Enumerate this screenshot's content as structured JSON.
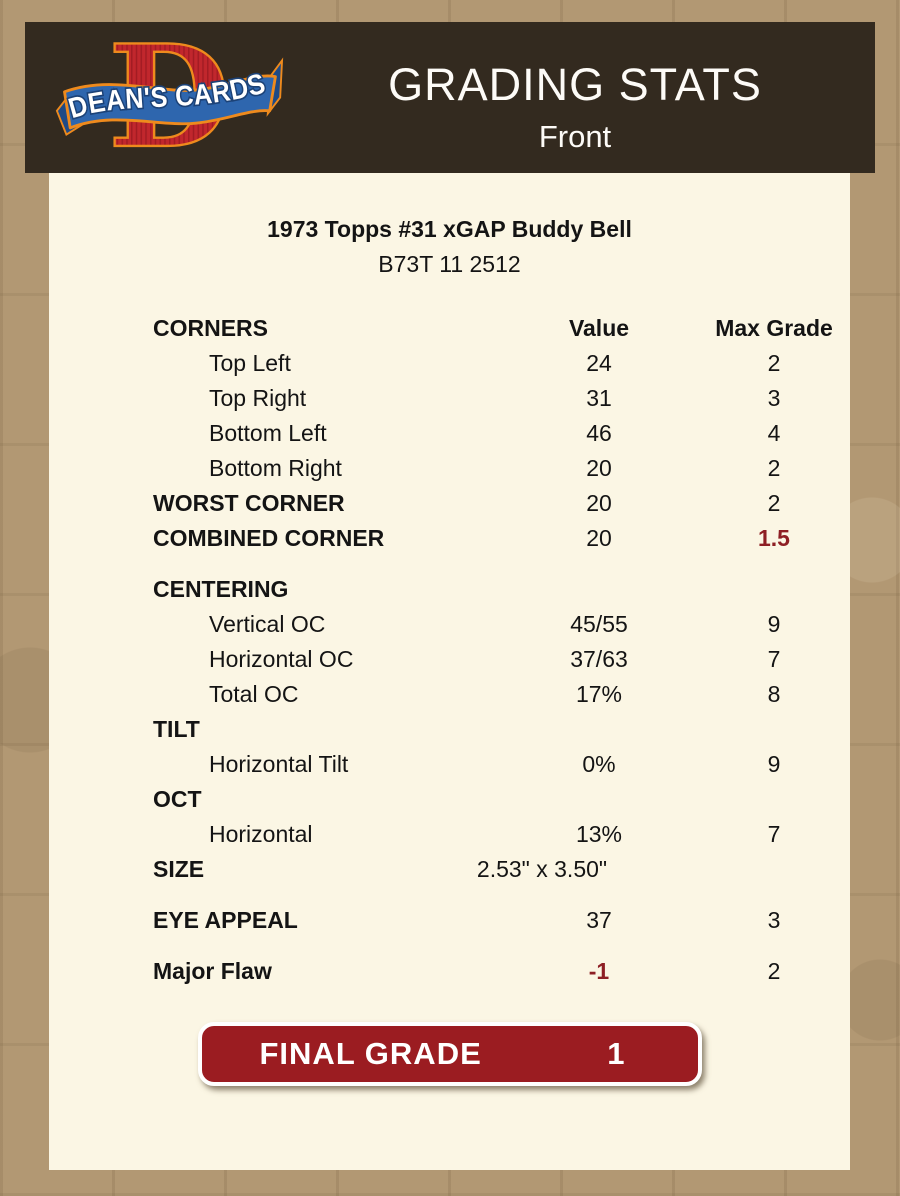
{
  "header": {
    "title": "GRADING STATS",
    "subtitle": "Front",
    "logo": {
      "letter": "D",
      "banner_text": "DEAN'S CARDS"
    }
  },
  "card": {
    "title": "1973 Topps #31 xGAP Buddy Bell",
    "serial": "B73T 11 2512"
  },
  "table": {
    "rows": [
      {
        "id": "corners-header",
        "label": "CORNERS",
        "value": "Value",
        "grade": "Max Grade",
        "bold": true,
        "colhead": true
      },
      {
        "id": "top-left",
        "label": "Top Left",
        "value": "24",
        "grade": "2",
        "indent": true
      },
      {
        "id": "top-right",
        "label": "Top Right",
        "value": "31",
        "grade": "3",
        "indent": true
      },
      {
        "id": "bottom-left",
        "label": "Bottom Left",
        "value": "46",
        "grade": "4",
        "indent": true
      },
      {
        "id": "bottom-right",
        "label": "Bottom Right",
        "value": "20",
        "grade": "2",
        "indent": true
      },
      {
        "id": "worst-corner",
        "label": "WORST CORNER",
        "value": "20",
        "grade": "2",
        "bold": true
      },
      {
        "id": "combined-corner",
        "label": "COMBINED CORNER",
        "value": "20",
        "grade": "1.5",
        "bold": true,
        "red_grade": true
      },
      {
        "id": "centering",
        "label": "CENTERING",
        "value": "",
        "grade": "",
        "bold": true,
        "gap": true
      },
      {
        "id": "vertical-oc",
        "label": "Vertical OC",
        "value": "45/55",
        "grade": "9",
        "indent": true
      },
      {
        "id": "horizontal-oc",
        "label": "Horizontal OC",
        "value": "37/63",
        "grade": "7",
        "indent": true
      },
      {
        "id": "total-oc",
        "label": "Total OC",
        "value": "17%",
        "grade": "8",
        "indent": true
      },
      {
        "id": "tilt",
        "label": "TILT",
        "value": "",
        "grade": "",
        "bold": true
      },
      {
        "id": "horizontal-tilt",
        "label": "Horizontal Tilt",
        "value": "0%",
        "grade": "9",
        "indent": true
      },
      {
        "id": "oct",
        "label": "OCT",
        "value": "",
        "grade": "",
        "bold": true
      },
      {
        "id": "oct-horizontal",
        "label": "Horizontal",
        "value": "13%",
        "grade": "7",
        "indent": true
      },
      {
        "id": "size",
        "label": "SIZE",
        "value": "2.53\" x 3.50\"",
        "grade": "",
        "bold": true,
        "shift": true
      },
      {
        "id": "eye-appeal",
        "label": "EYE APPEAL",
        "value": "37",
        "grade": "3",
        "bold": true,
        "gap": true
      },
      {
        "id": "major-flaw",
        "label": "Major Flaw",
        "value": "-1",
        "grade": "2",
        "bold": true,
        "gap": true,
        "red_value": true
      }
    ]
  },
  "final_grade": {
    "label": "FINAL GRADE",
    "value": "1"
  },
  "colors": {
    "page_background": "#b29873",
    "panel_background": "#fbf6e4",
    "header_background": "#332a1f",
    "maroon_text": "#8e1f24",
    "button_red": "#9b1c21",
    "logo_red": "#c1272d",
    "logo_orange": "#ee8a1d",
    "ribbon_blue": "#2e66ae"
  }
}
